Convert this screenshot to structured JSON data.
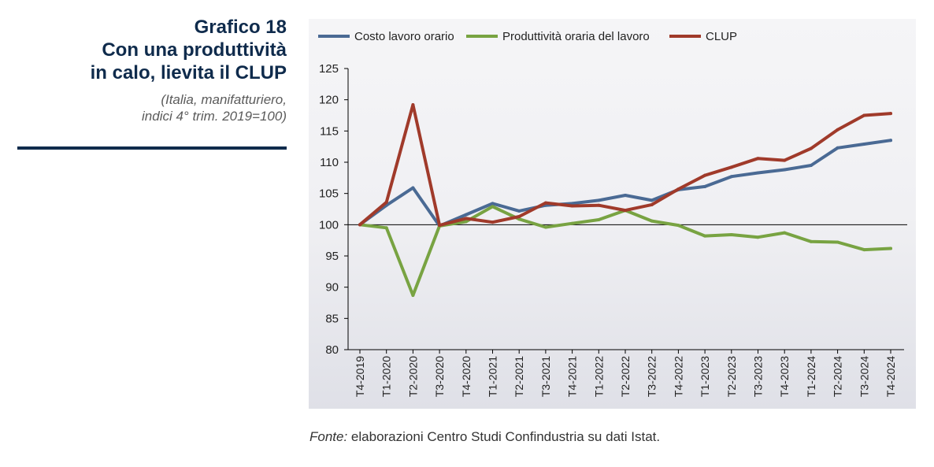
{
  "header": {
    "title_lines": [
      "Grafico 18",
      "Con una produttività",
      "in calo, lievita il CLUP"
    ],
    "subtitle_lines": [
      "(Italia, manifatturiero,",
      "indici 4° trim. 2019=100)"
    ]
  },
  "source": {
    "label": "Fonte:",
    "text": " elaborazioni Centro Studi Confindustria su dati Istat."
  },
  "chart_data": {
    "type": "line",
    "categories": [
      "T4-2019",
      "T1-2020",
      "T2-2020",
      "T3-2020",
      "T4-2020",
      "T1-2021",
      "T2-2021",
      "T3-2021",
      "T4-2021",
      "T1-2022",
      "T2-2022",
      "T3-2022",
      "T4-2022",
      "T1-2023",
      "T2-2023",
      "T3-2023",
      "T4-2023",
      "T1-2024",
      "T2-2024",
      "T3-2024",
      "T4-2024"
    ],
    "y_ticks": [
      80,
      85,
      90,
      95,
      100,
      105,
      110,
      115,
      120,
      125
    ],
    "ylim": [
      80,
      125
    ],
    "reference_line": 100,
    "grid": false,
    "legend_position": "top",
    "series": [
      {
        "name": "Costo lavoro orario",
        "color": "#4a6a94",
        "values": [
          100.0,
          103.1,
          105.9,
          99.8,
          101.6,
          103.4,
          102.2,
          103.1,
          103.4,
          103.9,
          104.7,
          103.9,
          105.6,
          106.1,
          107.7,
          108.3,
          108.8,
          109.5,
          112.3,
          112.9,
          113.5
        ]
      },
      {
        "name": "Produttività oraria del lavoro",
        "color": "#78a342",
        "values": [
          100.0,
          99.5,
          88.7,
          99.8,
          100.5,
          102.9,
          100.9,
          99.6,
          100.2,
          100.8,
          102.3,
          100.6,
          99.9,
          98.2,
          98.4,
          98.0,
          98.7,
          97.3,
          97.2,
          96.0,
          96.2
        ]
      },
      {
        "name": "CLUP",
        "color": "#a03a2a",
        "values": [
          100.0,
          103.6,
          119.2,
          99.9,
          101.0,
          100.4,
          101.3,
          103.5,
          103.0,
          103.1,
          102.3,
          103.2,
          105.7,
          107.9,
          109.2,
          110.6,
          110.3,
          112.2,
          115.2,
          117.5,
          117.8
        ]
      }
    ]
  }
}
